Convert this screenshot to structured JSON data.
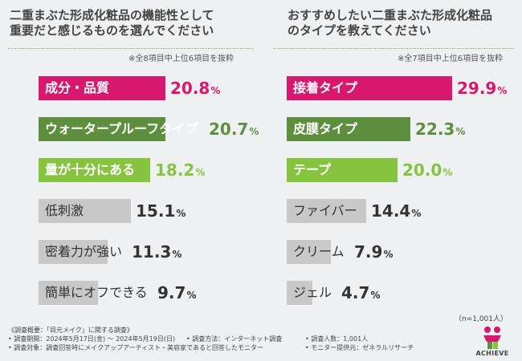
{
  "colors": {
    "magenta": "#d8176e",
    "dark_green": "#5e8f3e",
    "light_green": "#86c440",
    "gray": "#c8c8c8",
    "text_dark": "#333333"
  },
  "left": {
    "title_line1": "二重まぶた形成化粧品の機能性として",
    "title_line2": "重要だと感じるものを選んでください",
    "note": "※全8項目中上位6項目を抜粋"
  },
  "right": {
    "title_line1": "おすすめしたい二重まぶた形成化粧品",
    "title_line2": "のタイプを教えてください",
    "note": "※全7項目中上位6項目を抜粋"
  },
  "chart_data": [
    {
      "type": "bar",
      "orientation": "horizontal",
      "title": "二重まぶた形成化粧品の機能性として重要だと感じるものを選んでください",
      "categories": [
        "成分・品質",
        "ウォータープルーフタイプ",
        "量が十分にある",
        "低刺激",
        "密着力が強い",
        "簡単にオフできる"
      ],
      "values": [
        20.8,
        20.7,
        18.2,
        15.1,
        11.3,
        9.7
      ],
      "value_labels": [
        "20.8",
        "20.7",
        "18.2",
        "15.1",
        "11.3",
        "9.7"
      ],
      "unit": "%",
      "bar_colors": [
        "#d8176e",
        "#5e8f3e",
        "#86c440",
        "#c8c8c8",
        "#c8c8c8",
        "#c8c8c8"
      ]
    },
    {
      "type": "bar",
      "orientation": "horizontal",
      "title": "おすすめしたい二重まぶた形成化粧品のタイプを教えてください",
      "categories": [
        "接着タイプ",
        "皮膜タイプ",
        "テープ",
        "ファイバー",
        "クリーム",
        "ジェル"
      ],
      "values": [
        29.9,
        22.3,
        20.0,
        14.4,
        7.9,
        4.7
      ],
      "value_labels": [
        "29.9",
        "22.3",
        "20.0",
        "14.4",
        "7.9",
        "4.7"
      ],
      "unit": "%",
      "bar_colors": [
        "#d8176e",
        "#5e8f3e",
        "#86c440",
        "#c8c8c8",
        "#c8c8c8",
        "#c8c8c8"
      ]
    }
  ],
  "sample_size": "（n=1,001人）",
  "footer": {
    "overview": "《調査概要：「目元メイク」に関する調査》",
    "period": "• 調査期間：2024年5月17日(金) ～ 2024年5月19日(日)",
    "method": "• 調査方法：インターネット調査",
    "count": "• 調査人数：1,001人",
    "target": "• 調査対象：調査回答時にメイクアップアーティスト・美容家であると回答したモニター",
    "provider": "• モニター提供元：ゼネラルリサーチ"
  },
  "logo": {
    "text": "ACHIEVE"
  }
}
